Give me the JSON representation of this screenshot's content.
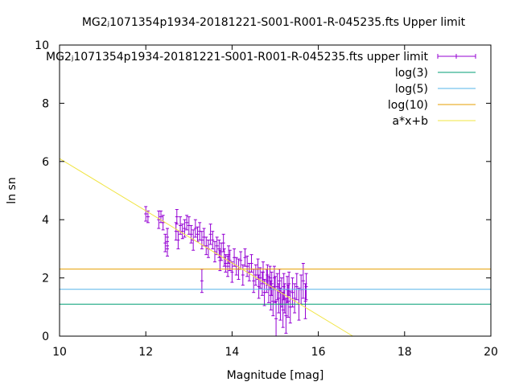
{
  "chart_data": {
    "type": "scatter",
    "title": "MG2ⱼ1071354p1934-20181221-S001-R001-R-045235.fts Upper limit",
    "xlabel": "Magnitude [mag]",
    "ylabel": "ln sn",
    "xlim": [
      10,
      20
    ],
    "ylim": [
      0,
      10
    ],
    "xticks": [
      "10",
      "12",
      "14",
      "16",
      "18",
      "20"
    ],
    "yticks": [
      "0",
      "2",
      "4",
      "6",
      "8",
      "10"
    ],
    "grid": false,
    "legend_position": "top-right",
    "series": [
      {
        "name": "MG2ⱼ1071354p1934-20181221-S001-R001-R-045235.fts upper limit",
        "kind": "errorbar",
        "color": "#9400d3",
        "points": [
          [
            12.0,
            4.2,
            0.25
          ],
          [
            12.05,
            4.1,
            0.2
          ],
          [
            12.3,
            4.0,
            0.3
          ],
          [
            12.35,
            4.1,
            0.2
          ],
          [
            12.4,
            3.9,
            0.25
          ],
          [
            12.45,
            3.2,
            0.3
          ],
          [
            12.5,
            3.4,
            0.3
          ],
          [
            12.5,
            3.0,
            0.25
          ],
          [
            12.7,
            3.6,
            0.3
          ],
          [
            12.72,
            4.1,
            0.25
          ],
          [
            12.75,
            3.3,
            0.3
          ],
          [
            12.8,
            3.8,
            0.3
          ],
          [
            12.85,
            3.6,
            0.25
          ],
          [
            12.9,
            3.7,
            0.3
          ],
          [
            12.95,
            3.9,
            0.25
          ],
          [
            13.0,
            3.8,
            0.3
          ],
          [
            13.05,
            3.5,
            0.3
          ],
          [
            13.1,
            3.3,
            0.35
          ],
          [
            13.15,
            3.7,
            0.3
          ],
          [
            13.2,
            3.5,
            0.25
          ],
          [
            13.25,
            3.6,
            0.3
          ],
          [
            13.3,
            3.3,
            0.3
          ],
          [
            13.3,
            1.9,
            0.4
          ],
          [
            13.35,
            3.4,
            0.3
          ],
          [
            13.4,
            3.1,
            0.3
          ],
          [
            13.45,
            3.0,
            0.3
          ],
          [
            13.5,
            3.5,
            0.35
          ],
          [
            13.55,
            3.3,
            0.3
          ],
          [
            13.6,
            2.9,
            0.35
          ],
          [
            13.65,
            3.1,
            0.3
          ],
          [
            13.7,
            3.0,
            0.3
          ],
          [
            13.72,
            2.6,
            0.35
          ],
          [
            13.75,
            2.9,
            0.3
          ],
          [
            13.8,
            3.2,
            0.3
          ],
          [
            13.82,
            2.7,
            0.3
          ],
          [
            13.85,
            2.5,
            0.3
          ],
          [
            13.9,
            2.4,
            0.35
          ],
          [
            13.92,
            2.8,
            0.3
          ],
          [
            13.95,
            2.6,
            0.35
          ],
          [
            14.0,
            2.2,
            0.35
          ],
          [
            14.05,
            2.7,
            0.3
          ],
          [
            14.1,
            2.4,
            0.3
          ],
          [
            14.15,
            2.3,
            0.35
          ],
          [
            14.2,
            2.6,
            0.3
          ],
          [
            14.25,
            2.1,
            0.35
          ],
          [
            14.3,
            2.7,
            0.3
          ],
          [
            14.35,
            2.4,
            0.35
          ],
          [
            14.4,
            2.2,
            0.3
          ],
          [
            14.45,
            2.5,
            0.3
          ],
          [
            14.5,
            1.9,
            0.4
          ],
          [
            14.55,
            2.1,
            0.35
          ],
          [
            14.6,
            2.3,
            0.35
          ],
          [
            14.62,
            1.7,
            0.4
          ],
          [
            14.65,
            2.0,
            0.35
          ],
          [
            14.7,
            1.8,
            0.4
          ],
          [
            14.72,
            2.2,
            0.35
          ],
          [
            14.75,
            1.5,
            0.45
          ],
          [
            14.8,
            1.9,
            0.4
          ],
          [
            14.82,
            2.1,
            0.35
          ],
          [
            14.85,
            1.6,
            0.45
          ],
          [
            14.88,
            2.0,
            0.4
          ],
          [
            14.9,
            1.4,
            0.5
          ],
          [
            14.92,
            1.8,
            0.4
          ],
          [
            14.95,
            1.2,
            0.5
          ],
          [
            14.98,
            2.0,
            0.4
          ],
          [
            15.0,
            1.6,
            0.45
          ],
          [
            15.02,
            0.6,
            0.6
          ],
          [
            15.05,
            1.7,
            0.45
          ],
          [
            15.08,
            1.3,
            0.5
          ],
          [
            15.1,
            1.9,
            0.4
          ],
          [
            15.12,
            1.1,
            0.55
          ],
          [
            15.15,
            1.5,
            0.5
          ],
          [
            15.18,
            0.9,
            0.6
          ],
          [
            15.2,
            1.7,
            0.45
          ],
          [
            15.22,
            1.3,
            0.5
          ],
          [
            15.25,
            0.7,
            0.6
          ],
          [
            15.28,
            1.6,
            0.45
          ],
          [
            15.3,
            1.2,
            0.55
          ],
          [
            15.32,
            1.8,
            0.4
          ],
          [
            15.35,
            1.0,
            0.55
          ],
          [
            15.4,
            1.5,
            0.5
          ],
          [
            15.45,
            1.3,
            0.5
          ],
          [
            15.5,
            1.7,
            0.45
          ],
          [
            15.55,
            1.1,
            0.55
          ],
          [
            15.6,
            1.6,
            0.5
          ],
          [
            15.65,
            1.9,
            0.6
          ],
          [
            15.7,
            1.2,
            0.6
          ],
          [
            15.72,
            1.7,
            0.45
          ]
        ]
      },
      {
        "name": "log(3)",
        "kind": "hline",
        "y": 1.0986,
        "color": "#009e73"
      },
      {
        "name": "log(5)",
        "kind": "hline",
        "y": 1.6094,
        "color": "#56b4e9"
      },
      {
        "name": "log(10)",
        "kind": "hline",
        "y": 2.3026,
        "color": "#e69f00"
      },
      {
        "name": "a*x+b",
        "kind": "line",
        "color": "#f0e442",
        "x": [
          10.0,
          16.8
        ],
        "y": [
          6.1,
          0.0
        ]
      }
    ]
  }
}
